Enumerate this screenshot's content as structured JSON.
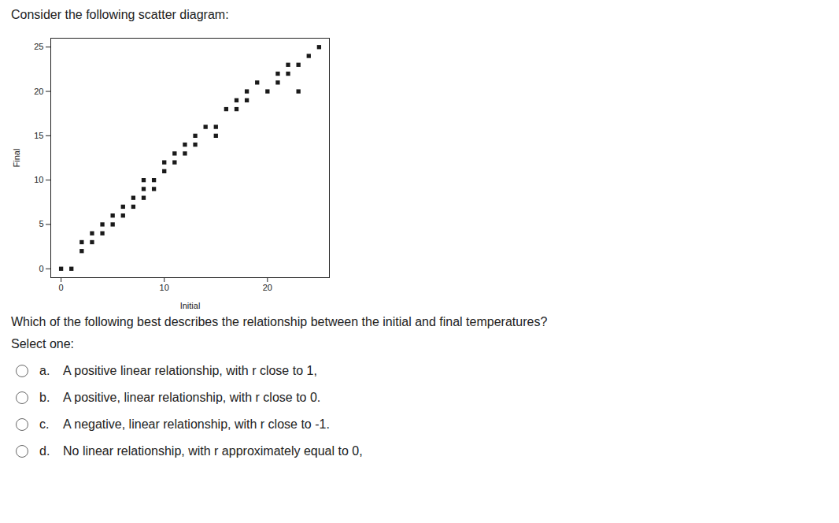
{
  "chart_data": {
    "type": "scatter",
    "title": "Consider the following scatter diagram:",
    "x": [
      0,
      1,
      2,
      2,
      3,
      3,
      4,
      4,
      5,
      5,
      6,
      6,
      7,
      7,
      8,
      8,
      8,
      9,
      9,
      10,
      10,
      11,
      11,
      12,
      12,
      13,
      13,
      14,
      15,
      15,
      16,
      17,
      17,
      18,
      18,
      19,
      20,
      21,
      21,
      22,
      22,
      23,
      23,
      24,
      25
    ],
    "values": [
      0,
      0,
      2,
      3,
      3,
      4,
      4,
      5,
      5,
      6,
      6,
      7,
      7,
      8,
      8,
      9,
      10,
      9,
      10,
      11,
      12,
      12,
      13,
      13,
      14,
      14,
      15,
      16,
      15,
      16,
      18,
      18,
      19,
      19,
      20,
      21,
      20,
      21,
      22,
      22,
      23,
      23,
      20,
      24,
      25
    ],
    "xlabel": "Initial",
    "ylabel": "Final",
    "xlim": [
      -1,
      26
    ],
    "ylim": [
      -1,
      26
    ],
    "xticks": [
      0,
      10,
      20
    ],
    "yticks": [
      0,
      5,
      10,
      15,
      20,
      25
    ],
    "color": "#1a1a1a",
    "marker": "square",
    "grid": false,
    "annotations": [
      "Which of the following best describes the relationship between the initial and final temperatures?",
      "Select one:",
      [
        "a.",
        "A positive linear relationship, with r close to 1,"
      ],
      [
        "b.",
        "A positive, linear relationship, with r close to 0."
      ],
      [
        "c.",
        "A negative, linear relationship, with r close to -1."
      ],
      [
        "d.",
        "No linear relationship, with r approximately equal to 0,"
      ]
    ]
  }
}
